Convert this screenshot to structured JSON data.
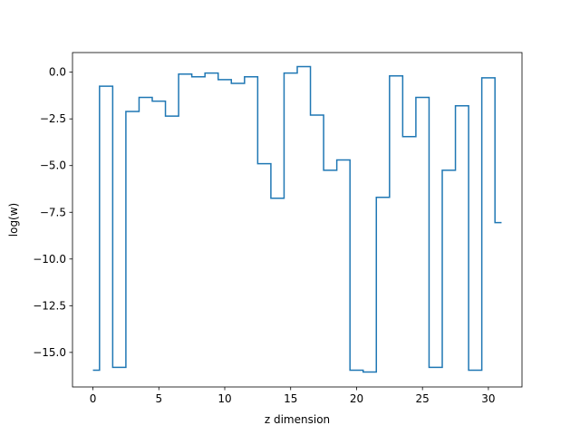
{
  "chart_data": {
    "type": "line",
    "drawstyle": "steps-mid",
    "title": "",
    "xlabel": "z dimension",
    "ylabel": "log(w)",
    "xlim": [
      -1.55,
      32.55
    ],
    "ylim": [
      -16.85,
      1.05
    ],
    "grid": false,
    "legend": "none",
    "x_ticks": [
      0,
      5,
      10,
      15,
      20,
      25,
      30
    ],
    "y_ticks": [
      0.0,
      -2.5,
      -5.0,
      -7.5,
      -10.0,
      -12.5,
      -15.0
    ],
    "x_tick_labels": [
      "0",
      "5",
      "10",
      "15",
      "20",
      "25",
      "30"
    ],
    "y_tick_labels": [
      "0.0",
      "−2.5",
      "−5.0",
      "−7.5",
      "−10.0",
      "−12.5",
      "−15.0"
    ],
    "series": [
      {
        "color": "#1f77b4",
        "x": [
          0,
          1,
          2,
          3,
          4,
          5,
          6,
          7,
          8,
          9,
          10,
          11,
          12,
          13,
          14,
          15,
          16,
          17,
          18,
          19,
          20,
          21,
          22,
          23,
          24,
          25,
          26,
          27,
          28,
          29,
          30,
          31
        ],
        "values": [
          -15.95,
          -0.75,
          -15.8,
          -2.1,
          -1.35,
          -1.55,
          -2.35,
          -0.1,
          -0.25,
          -0.05,
          -0.4,
          -0.6,
          -0.25,
          -4.9,
          -6.75,
          -0.05,
          0.3,
          -2.3,
          -5.25,
          -4.7,
          -15.95,
          -16.05,
          -6.7,
          -0.2,
          -3.45,
          -1.35,
          -15.8,
          -5.25,
          -1.8,
          -15.95,
          -0.3,
          -8.05
        ]
      }
    ]
  }
}
